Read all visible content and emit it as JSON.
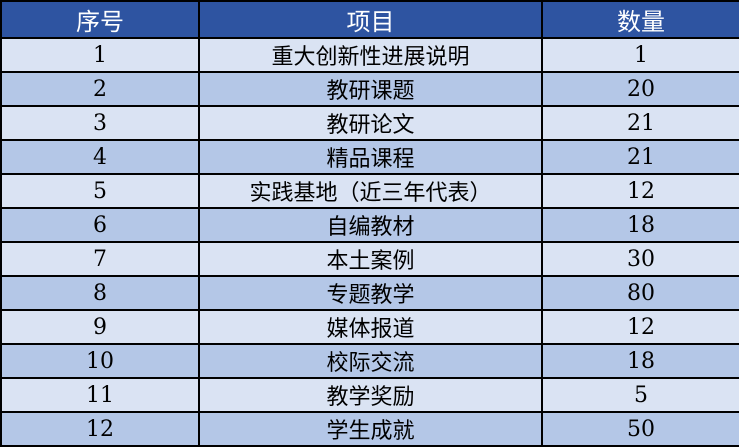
{
  "colors": {
    "header": "#2E54A1",
    "row_light": "#DAE3F3",
    "row_dark": "#B4C7E7"
  },
  "headers": [
    "序号",
    "项目",
    "数量"
  ],
  "rows": [
    [
      "1",
      "重大创新性进展说明",
      "1"
    ],
    [
      "2",
      "教研课题",
      "20"
    ],
    [
      "3",
      "教研论文",
      "21"
    ],
    [
      "4",
      "精品课程",
      "21"
    ],
    [
      "5",
      "实践基地（近三年代表）",
      "12"
    ],
    [
      "6",
      "自编教材",
      "18"
    ],
    [
      "7",
      "本土案例",
      "30"
    ],
    [
      "8",
      "专题教学",
      "80"
    ],
    [
      "9",
      "媒体报道",
      "12"
    ],
    [
      "10",
      "校际交流",
      "18"
    ],
    [
      "11",
      "教学奖励",
      "5"
    ],
    [
      "12",
      "学生成就",
      "50"
    ]
  ]
}
